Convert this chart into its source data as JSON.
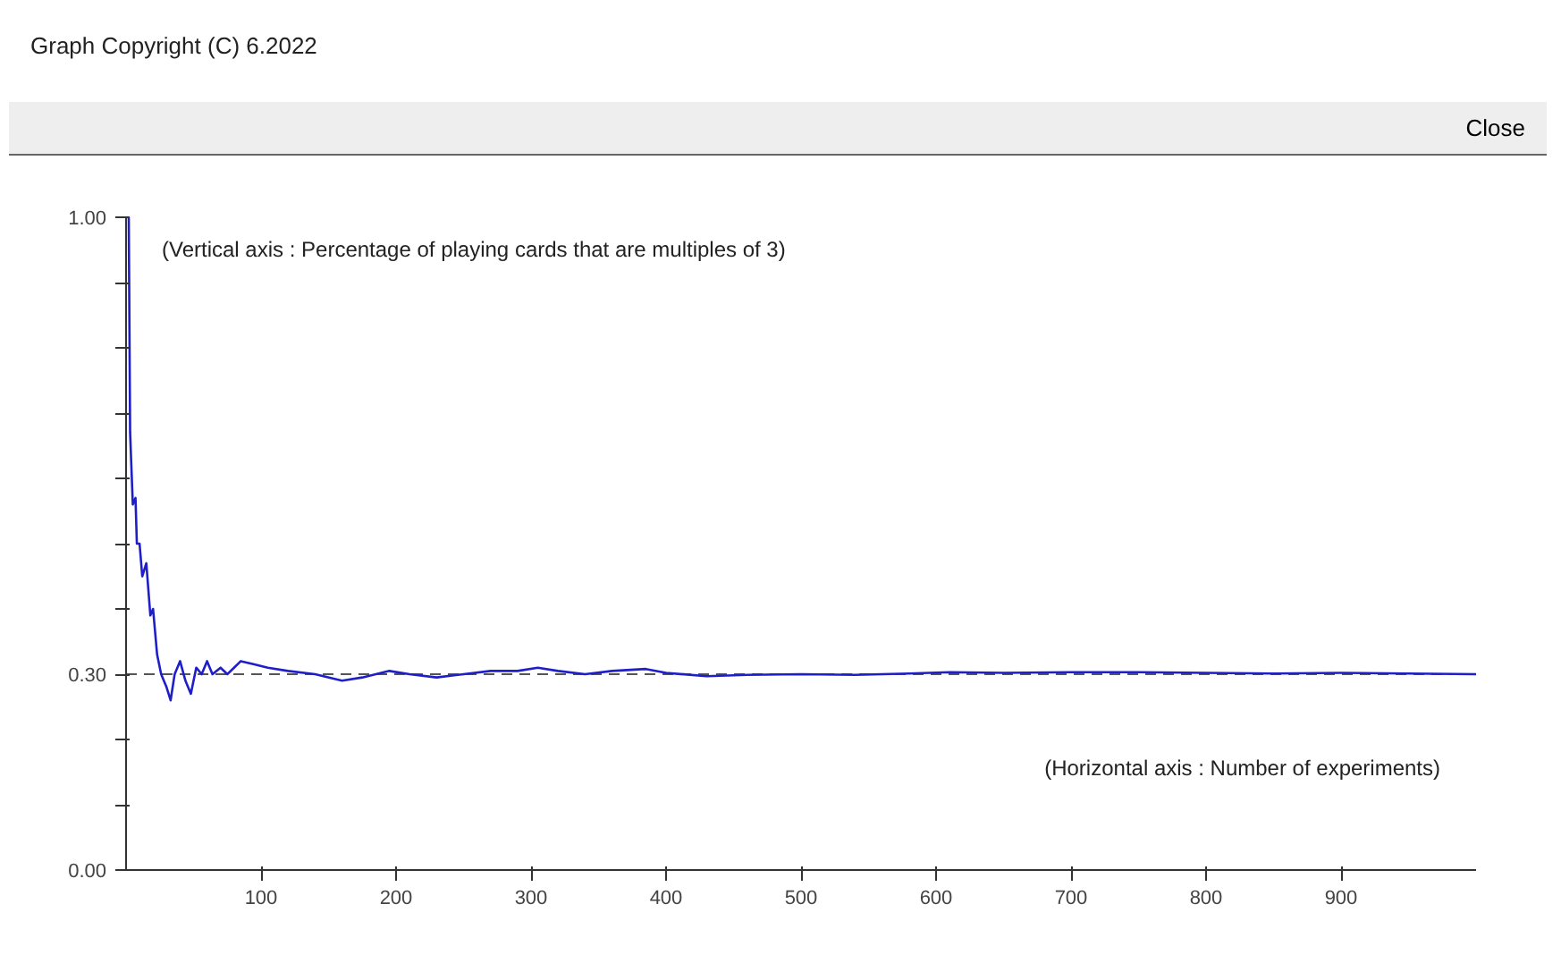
{
  "chart_data": {
    "type": "line",
    "annotations": [
      "(Vertical axis : Percentage of playing cards that are multiples of 3)",
      "(Horizontal axis : Number of experiments)",
      "Graph Copyright (C) 6.2022",
      "Close"
    ],
    "x": [
      1,
      2,
      3,
      5,
      7,
      8,
      10,
      12,
      15,
      18,
      20,
      23,
      26,
      30,
      33,
      36,
      40,
      44,
      48,
      52,
      56,
      60,
      64,
      70,
      75,
      80,
      85,
      95,
      105,
      120,
      140,
      160,
      175,
      195,
      210,
      230,
      250,
      270,
      290,
      305,
      320,
      340,
      360,
      385,
      400,
      430,
      460,
      500,
      540,
      580,
      610,
      650,
      700,
      750,
      800,
      850,
      900,
      950,
      1000
    ],
    "series": [
      {
        "color": "#1f1fc8",
        "values": [
          1.0,
          1.0,
          0.67,
          0.56,
          0.57,
          0.5,
          0.5,
          0.45,
          0.47,
          0.39,
          0.4,
          0.33,
          0.3,
          0.28,
          0.26,
          0.3,
          0.32,
          0.29,
          0.27,
          0.31,
          0.3,
          0.32,
          0.3,
          0.31,
          0.3,
          0.31,
          0.32,
          0.315,
          0.31,
          0.305,
          0.3,
          0.29,
          0.295,
          0.305,
          0.3,
          0.295,
          0.3,
          0.305,
          0.305,
          0.31,
          0.305,
          0.3,
          0.305,
          0.308,
          0.302,
          0.297,
          0.299,
          0.3,
          0.299,
          0.301,
          0.303,
          0.302,
          0.303,
          0.303,
          0.302,
          0.301,
          0.302,
          0.301,
          0.3
        ]
      }
    ],
    "xlim": [
      0,
      1000
    ],
    "ylim": [
      0,
      1
    ],
    "xticks": [
      100,
      200,
      300,
      400,
      500,
      600,
      700,
      800,
      900
    ],
    "yticks": [
      {
        "value": 0,
        "label": "0.00"
      },
      {
        "value": 0.1,
        "label": null
      },
      {
        "value": 0.2,
        "label": null
      },
      {
        "value": 0.3,
        "label": "0.30"
      },
      {
        "value": 0.4,
        "label": null
      },
      {
        "value": 0.5,
        "label": null
      },
      {
        "value": 0.6,
        "label": null
      },
      {
        "value": 0.7,
        "label": null
      },
      {
        "value": 0.8,
        "label": null
      },
      {
        "value": 0.9,
        "label": null
      },
      {
        "value": 1.0,
        "label": "1.00"
      }
    ],
    "ref_lines": [
      {
        "axis": "y",
        "value": 0.3,
        "label": null,
        "color": "#555555",
        "line_style": "dashed"
      }
    ],
    "marker": "none",
    "line_style": "solid"
  }
}
